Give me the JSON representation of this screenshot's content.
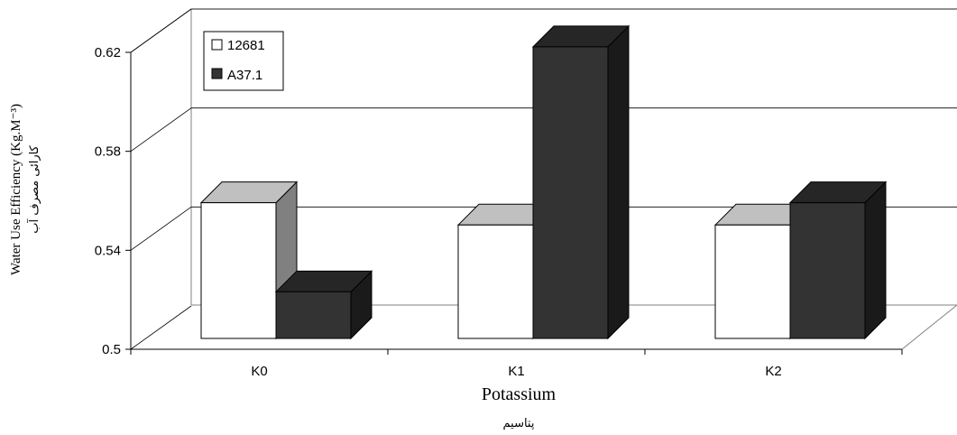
{
  "chart_data": {
    "type": "bar",
    "categories": [
      "K0",
      "K1",
      "K2"
    ],
    "series": [
      {
        "name": "12681",
        "values": [
          0.55,
          0.54,
          0.54
        ],
        "color": "#ffffff",
        "top": "#c0c0c0",
        "side": "#808080"
      },
      {
        "name": "A37.1",
        "values": [
          0.51,
          0.62,
          0.55
        ],
        "color": "#333333",
        "top": "#262626",
        "side": "#1a1a1a"
      }
    ],
    "yticks": [
      "0.5",
      "0.54",
      "0.58",
      "0.62"
    ],
    "ylim": [
      0.5,
      0.62
    ],
    "xlabel": "Potassium",
    "xlabel_sub": "پتاسیم",
    "ylabel": "Water Use Efficiency (Kg.M⁻³)",
    "ylabel_sub": "کارائی مصرف آب",
    "legend_position": "top-left",
    "grid": true
  }
}
